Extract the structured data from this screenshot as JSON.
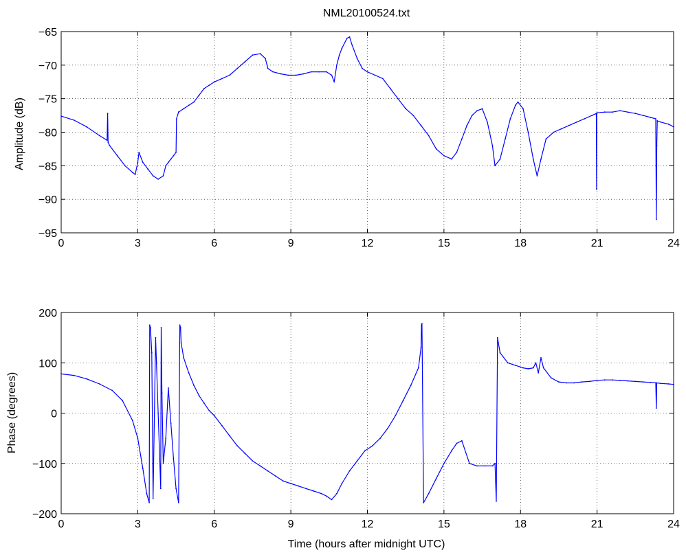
{
  "chart_data": [
    {
      "type": "line",
      "title": "NML20100524.txt",
      "xlabel": "",
      "ylabel": "Amplitude (dB)",
      "xlim": [
        0,
        24
      ],
      "ylim": [
        -95,
        -65
      ],
      "xticks": [
        "0",
        "3",
        "6",
        "9",
        "12",
        "15",
        "18",
        "21",
        "24"
      ],
      "yticks": [
        "-65",
        "-70",
        "-75",
        "-80",
        "-85",
        "-90",
        "-95"
      ],
      "grid": true,
      "color": "#0000ff",
      "series": [
        {
          "x": [
            0,
            0.5,
            1.0,
            1.5,
            1.8,
            1.82,
            1.84,
            1.9,
            2.2,
            2.5,
            2.8,
            2.9,
            3.0,
            3.05,
            3.2,
            3.4,
            3.6,
            3.8,
            4.0,
            4.1,
            4.2,
            4.3,
            4.4,
            4.5,
            4.52,
            4.6,
            4.8,
            5.0,
            5.2,
            5.4,
            5.6,
            5.8,
            6.0,
            6.3,
            6.6,
            6.9,
            7.2,
            7.5,
            7.8,
            8.0,
            8.1,
            8.3,
            8.6,
            8.9,
            9.2,
            9.5,
            9.8,
            10.1,
            10.4,
            10.6,
            10.7,
            10.8,
            10.9,
            11.0,
            11.2,
            11.3,
            11.4,
            11.6,
            11.8,
            12.0,
            12.3,
            12.6,
            12.9,
            13.2,
            13.5,
            13.8,
            14.1,
            14.4,
            14.7,
            15.0,
            15.3,
            15.5,
            15.7,
            15.9,
            16.1,
            16.3,
            16.5,
            16.7,
            16.9,
            17.0,
            17.2,
            17.4,
            17.6,
            17.8,
            17.9,
            18.1,
            18.3,
            18.5,
            18.65,
            18.8,
            19.0,
            19.3,
            19.6,
            19.9,
            20.2,
            20.5,
            20.8,
            20.97,
            20.98,
            20.99,
            21.0,
            21.3,
            21.6,
            21.9,
            22.2,
            22.5,
            22.8,
            23.1,
            23.3,
            23.32,
            23.34,
            23.36,
            23.5,
            23.8,
            24.0
          ],
          "y": [
            -77.6,
            -78.2,
            -79.2,
            -80.5,
            -81.2,
            -77.2,
            -81.5,
            -82.0,
            -83.5,
            -85.0,
            -86.0,
            -86.3,
            -84.5,
            -83.0,
            -84.5,
            -85.5,
            -86.5,
            -87.0,
            -86.5,
            -85.0,
            -84.5,
            -84.0,
            -83.5,
            -83.0,
            -78.0,
            -77.0,
            -76.5,
            -76.0,
            -75.5,
            -74.5,
            -73.5,
            -73.0,
            -72.5,
            -72.0,
            -71.5,
            -70.5,
            -69.5,
            -68.5,
            -68.3,
            -69.0,
            -70.5,
            -71.0,
            -71.3,
            -71.5,
            -71.5,
            -71.3,
            -71.0,
            -71.0,
            -71.0,
            -71.5,
            -72.5,
            -70.0,
            -68.5,
            -67.5,
            -66.0,
            -65.8,
            -67.0,
            -69.0,
            -70.5,
            -71.0,
            -71.5,
            -72.0,
            -73.5,
            -75.0,
            -76.5,
            -77.5,
            -79.0,
            -80.5,
            -82.5,
            -83.5,
            -84.0,
            -83.0,
            -81.0,
            -79.0,
            -77.5,
            -76.8,
            -76.5,
            -78.5,
            -82.0,
            -85.0,
            -84.0,
            -81.0,
            -78.0,
            -76.0,
            -75.5,
            -76.5,
            -80.0,
            -84.0,
            -86.5,
            -84.0,
            -81.0,
            -80.0,
            -79.5,
            -79.0,
            -78.5,
            -78.0,
            -77.5,
            -77.2,
            -88.5,
            -77.2,
            -77.1,
            -77.0,
            -77.0,
            -76.8,
            -77.0,
            -77.2,
            -77.5,
            -77.8,
            -78.0,
            -93.0,
            -82.0,
            -78.3,
            -78.5,
            -78.8,
            -79.2
          ]
        }
      ]
    },
    {
      "type": "line",
      "title": "",
      "xlabel": "Time (hours after midnight UTC)",
      "ylabel": "Phase (degrees)",
      "xlim": [
        0,
        24
      ],
      "ylim": [
        -200,
        200
      ],
      "xticks": [
        "0",
        "3",
        "6",
        "9",
        "12",
        "15",
        "18",
        "21",
        "24"
      ],
      "yticks": [
        "200",
        "100",
        "0",
        "-100",
        "-200"
      ],
      "grid": true,
      "color": "#0000ff",
      "series": [
        {
          "x": [
            0,
            0.5,
            1.0,
            1.5,
            2.0,
            2.4,
            2.8,
            3.0,
            3.2,
            3.35,
            3.45,
            3.47,
            3.5,
            3.55,
            3.6,
            3.7,
            3.8,
            3.9,
            3.92,
            3.95,
            4.0,
            4.1,
            4.2,
            4.3,
            4.4,
            4.5,
            4.6,
            4.65,
            4.68,
            4.7,
            4.8,
            5.0,
            5.2,
            5.4,
            5.6,
            5.8,
            6.0,
            6.3,
            6.6,
            6.9,
            7.2,
            7.5,
            7.8,
            8.1,
            8.4,
            8.7,
            9.0,
            9.3,
            9.6,
            9.9,
            10.2,
            10.4,
            10.6,
            10.8,
            11.0,
            11.3,
            11.6,
            11.9,
            12.2,
            12.5,
            12.8,
            13.1,
            13.4,
            13.7,
            14.0,
            14.1,
            14.12,
            14.14,
            14.2,
            14.4,
            14.7,
            15.0,
            15.3,
            15.5,
            15.7,
            16.0,
            16.3,
            16.6,
            16.9,
            17.0,
            17.05,
            17.1,
            17.2,
            17.5,
            17.8,
            18.1,
            18.3,
            18.5,
            18.6,
            18.7,
            18.8,
            18.9,
            19.2,
            19.5,
            19.8,
            20.1,
            20.4,
            20.7,
            21.0,
            21.3,
            21.6,
            21.9,
            22.2,
            22.5,
            22.8,
            23.1,
            23.3,
            23.32,
            23.34,
            23.5,
            23.8,
            24.0
          ],
          "y": [
            78,
            75,
            68,
            58,
            45,
            25,
            -15,
            -50,
            -110,
            -160,
            -178,
            175,
            170,
            120,
            -170,
            150,
            0,
            -150,
            170,
            40,
            -100,
            -50,
            50,
            -20,
            -90,
            -150,
            -178,
            175,
            170,
            140,
            110,
            80,
            55,
            35,
            20,
            5,
            -5,
            -25,
            -45,
            -65,
            -80,
            -95,
            -105,
            -115,
            -125,
            -135,
            -140,
            -145,
            -150,
            -155,
            -160,
            -165,
            -172,
            -160,
            -140,
            -115,
            -95,
            -75,
            -65,
            -50,
            -30,
            -5,
            25,
            55,
            90,
            130,
            175,
            178,
            -178,
            -160,
            -130,
            -100,
            -75,
            -60,
            -55,
            -100,
            -105,
            -105,
            -105,
            -100,
            -175,
            150,
            120,
            100,
            95,
            90,
            88,
            90,
            100,
            80,
            110,
            90,
            70,
            62,
            60,
            60,
            62,
            63,
            65,
            66,
            66,
            65,
            64,
            63,
            62,
            61,
            60,
            10,
            60,
            59,
            58,
            57
          ]
        }
      ]
    }
  ]
}
